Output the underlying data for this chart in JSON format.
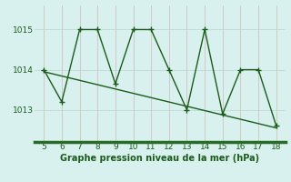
{
  "x": [
    5,
    6,
    7,
    8,
    9,
    10,
    11,
    12,
    13,
    14,
    15,
    16,
    17,
    18
  ],
  "y": [
    1014.0,
    1013.2,
    1015.0,
    1015.0,
    1013.65,
    1015.0,
    1015.0,
    1014.0,
    1013.0,
    1015.0,
    1012.9,
    1014.0,
    1014.0,
    1012.6
  ],
  "trend_x": [
    5,
    18
  ],
  "trend_y": [
    1013.95,
    1012.55
  ],
  "line_color": "#1a5c1a",
  "bg_color": "#d8f0ee",
  "hgrid_color": "#b8d4d0",
  "vgrid_color": "#d0b8b8",
  "bottom_bar_color": "#2a6b2a",
  "xlabel": "Graphe pression niveau de la mer (hPa)",
  "yticks": [
    1013,
    1014,
    1015
  ],
  "xticks": [
    5,
    6,
    7,
    8,
    9,
    10,
    11,
    12,
    13,
    14,
    15,
    16,
    17,
    18
  ],
  "ylim": [
    1012.2,
    1015.6
  ],
  "xlim": [
    4.5,
    18.5
  ],
  "markersize": 4,
  "linewidth": 1.0,
  "xlabel_fontsize": 7,
  "tick_fontsize": 6.5
}
